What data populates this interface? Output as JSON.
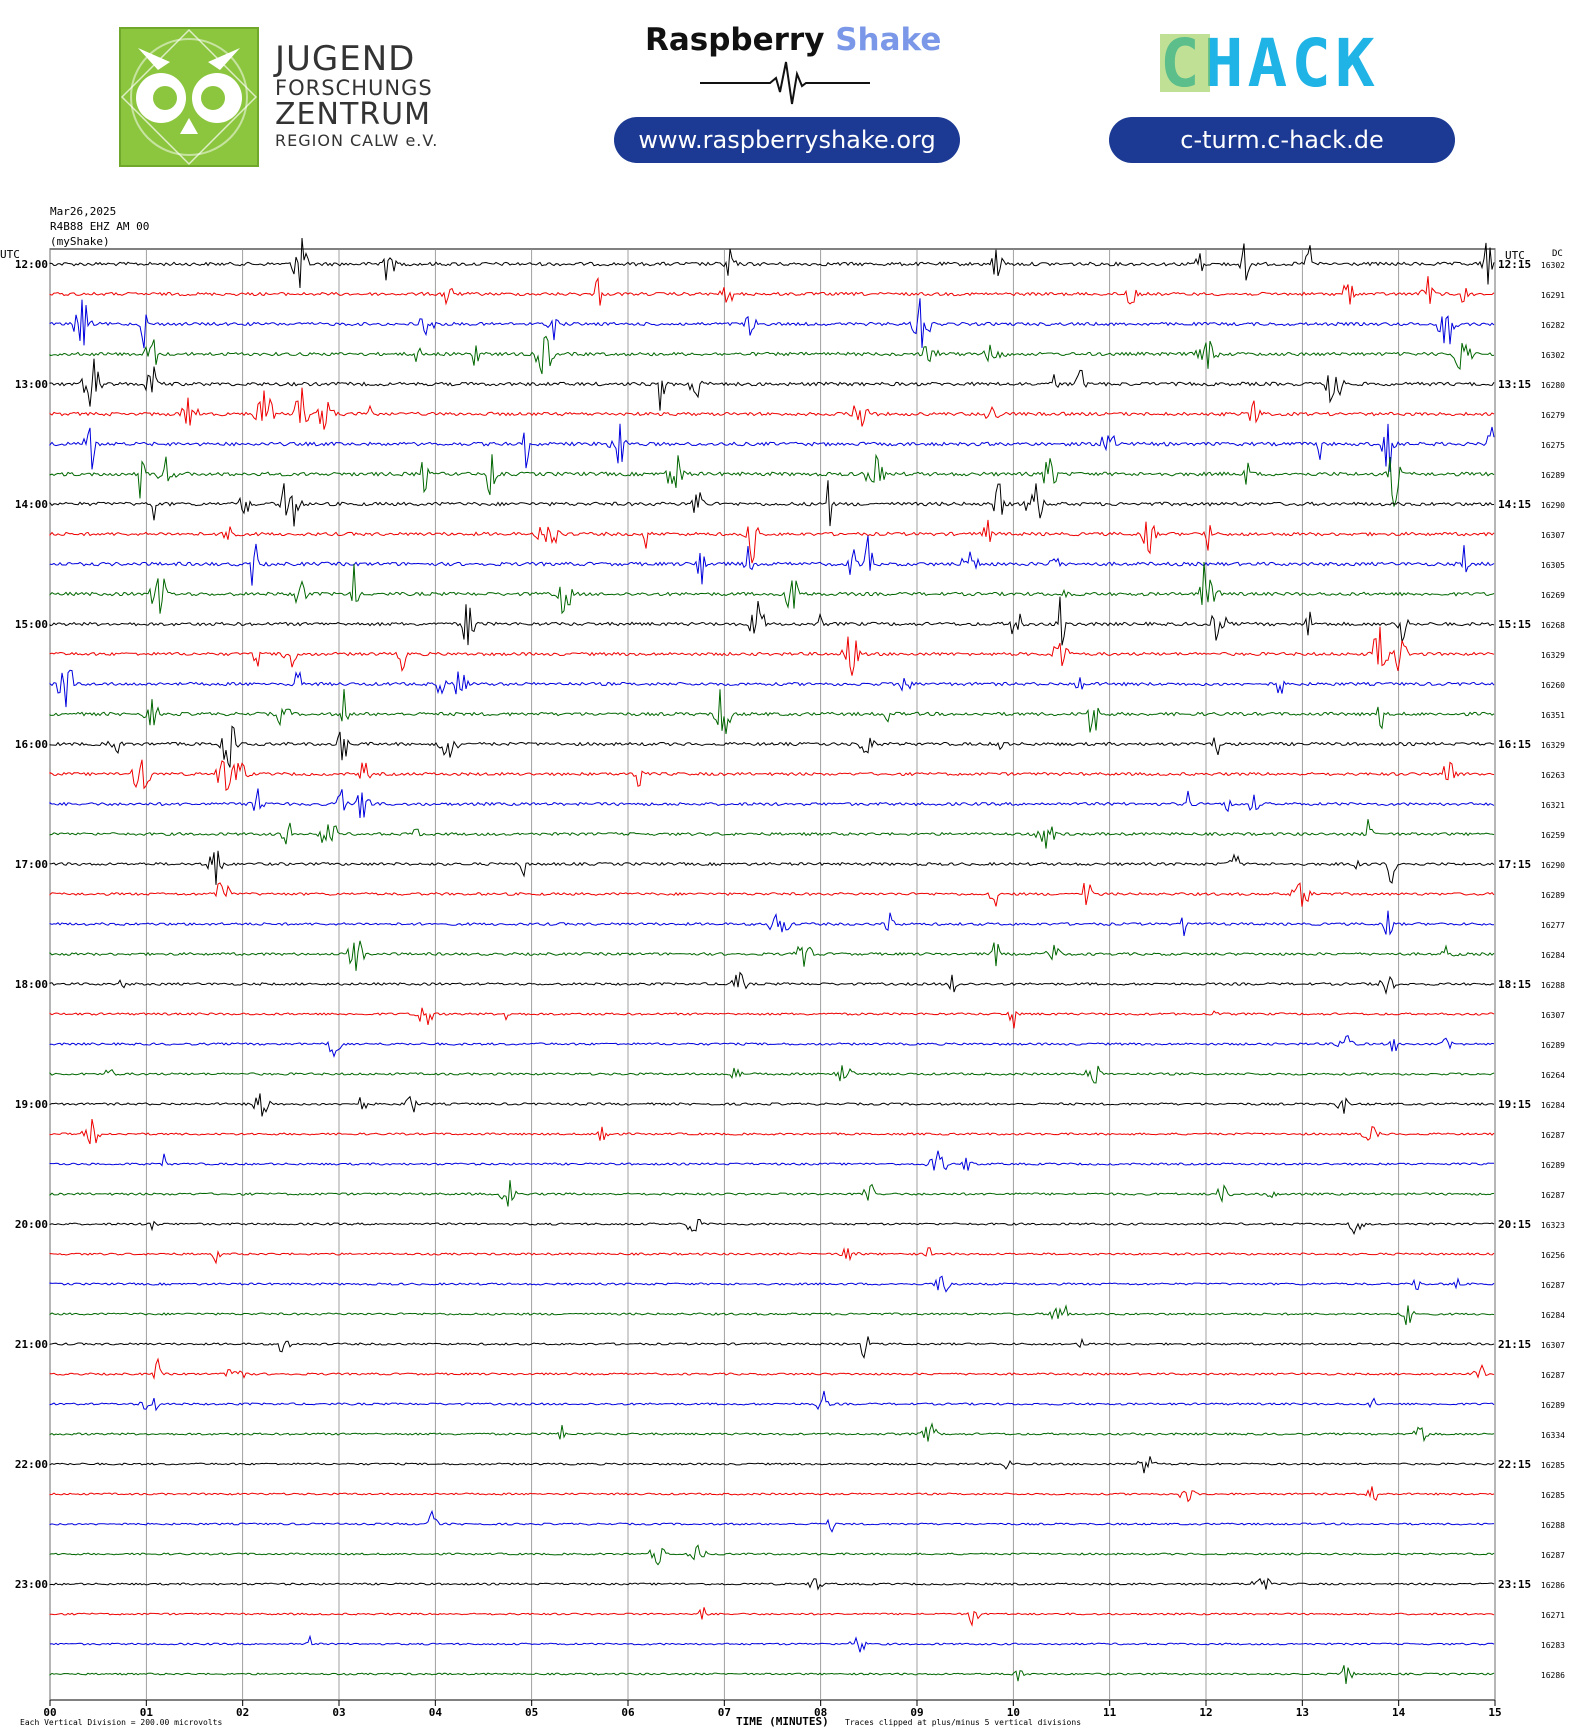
{
  "header": {
    "jfz": {
      "line1": "JUGEND",
      "line2": "FORSCHUNGS",
      "line3": "ZENTRUM",
      "line4": "REGION CALW e.V."
    },
    "rs_title": {
      "word1": "Raspberry",
      "word2": "Shake"
    },
    "rs_url": "www.raspberryshake.org",
    "chack_url": "c-turm.c-hack.de",
    "chack_logo_text": "CHACK"
  },
  "station": {
    "date": "Mar26,2025",
    "channel": "R4B88 EHZ AM 00",
    "source": "(myShake)"
  },
  "labels": {
    "utc_left": "UTC",
    "utc_right": "UTC",
    "dc": "DC",
    "x_axis": "TIME (MINUTES)",
    "footer_left": "Each Vertical Division =  200.00 microvolts",
    "footer_right": "Traces clipped at plus/minus 5 vertical divisions"
  },
  "chart_data": {
    "type": "line",
    "title": "",
    "xlabel": "TIME (MINUTES)",
    "ylabel": "",
    "x_ticks": [
      "00",
      "01",
      "02",
      "03",
      "04",
      "05",
      "06",
      "07",
      "08",
      "09",
      "10",
      "11",
      "12",
      "13",
      "14",
      "15"
    ],
    "xlim": [
      0,
      15
    ],
    "grid": true,
    "color_cycle": [
      "#000000",
      "#ee0000",
      "#0000dd",
      "#006600"
    ],
    "row_minutes": 15,
    "left_hour_labels": [
      "12:00",
      "13:00",
      "14:00",
      "15:00",
      "16:00",
      "17:00",
      "18:00",
      "19:00",
      "20:00",
      "21:00",
      "22:00",
      "23:00"
    ],
    "right_hour_labels": [
      "12:15",
      "13:15",
      "14:15",
      "15:15",
      "16:15",
      "17:15",
      "18:15",
      "19:15",
      "20:15",
      "21:15",
      "22:15",
      "23:15"
    ],
    "dc_values": [
      "16302",
      "16291",
      "16282",
      "16302",
      "16280",
      "16279",
      "16275",
      "16289",
      "16290",
      "16307",
      "16305",
      "16269",
      "16268",
      "16329",
      "16260",
      "16351",
      "16329",
      "16263",
      "16321",
      "16259",
      "16290",
      "16289",
      "16277",
      "16284",
      "16288",
      "16307",
      "16289",
      "16264",
      "16284",
      "16287",
      "16289",
      "16287",
      "16323",
      "16256",
      "16287",
      "16284",
      "16307",
      "16287",
      "16289",
      "16334",
      "16285",
      "16285",
      "16288",
      "16287",
      "16286",
      "16271",
      "16283",
      "16286"
    ],
    "activity": [
      0.6,
      0.5,
      0.5,
      0.55,
      0.6,
      0.55,
      0.6,
      0.65,
      0.6,
      0.55,
      0.6,
      0.55,
      0.55,
      0.5,
      0.5,
      0.55,
      0.5,
      0.45,
      0.45,
      0.4,
      0.4,
      0.35,
      0.35,
      0.35,
      0.3,
      0.25,
      0.25,
      0.25,
      0.25,
      0.2,
      0.2,
      0.25,
      0.2,
      0.2,
      0.2,
      0.2,
      0.2,
      0.2,
      0.2,
      0.2,
      0.15,
      0.15,
      0.15,
      0.15,
      0.15,
      0.12,
      0.12,
      0.12
    ]
  }
}
